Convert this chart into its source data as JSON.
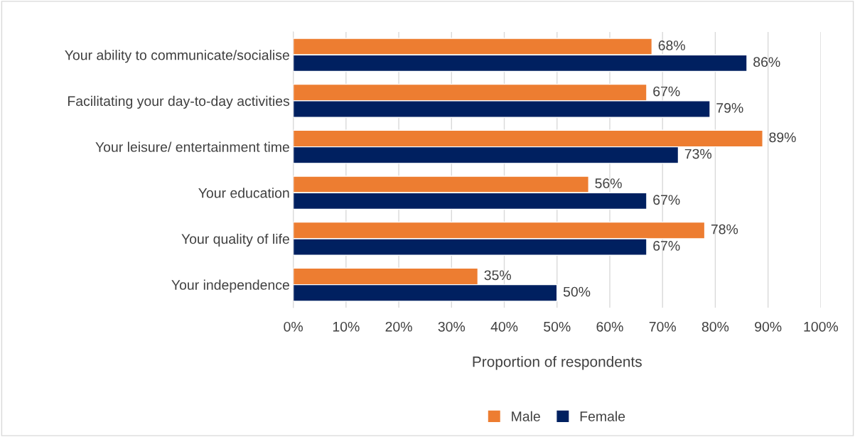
{
  "chart_data": {
    "type": "bar",
    "orientation": "horizontal",
    "xlabel": "Proportion of respondents",
    "categories": [
      "Your ability to communicate/socialise",
      "Facilitating your day-to-day activities",
      "Your leisure/ entertainment time",
      "Your education",
      "Your quality of life",
      "Your independence"
    ],
    "series": [
      {
        "name": "Male",
        "color": "#ed7d31",
        "values": [
          68,
          67,
          89,
          56,
          78,
          35
        ],
        "value_labels": [
          "68%",
          "67%",
          "89%",
          "56%",
          "78%",
          "35%"
        ]
      },
      {
        "name": "Female",
        "color": "#002060",
        "values": [
          86,
          79,
          73,
          67,
          67,
          50
        ],
        "value_labels": [
          "86%",
          "79%",
          "73%",
          "67%",
          "67%",
          "50%"
        ]
      }
    ],
    "xlim": [
      0,
      100
    ],
    "xticks": [
      {
        "value": 0,
        "label": "0%"
      },
      {
        "value": 10,
        "label": "10%"
      },
      {
        "value": 20,
        "label": "20%"
      },
      {
        "value": 30,
        "label": "30%"
      },
      {
        "value": 40,
        "label": "40%"
      },
      {
        "value": 50,
        "label": "50%"
      },
      {
        "value": 60,
        "label": "60%"
      },
      {
        "value": 70,
        "label": "70%"
      },
      {
        "value": 80,
        "label": "80%"
      },
      {
        "value": 90,
        "label": "90%"
      },
      {
        "value": 100,
        "label": "100%"
      }
    ],
    "grid": "x",
    "legend": "bottom"
  }
}
